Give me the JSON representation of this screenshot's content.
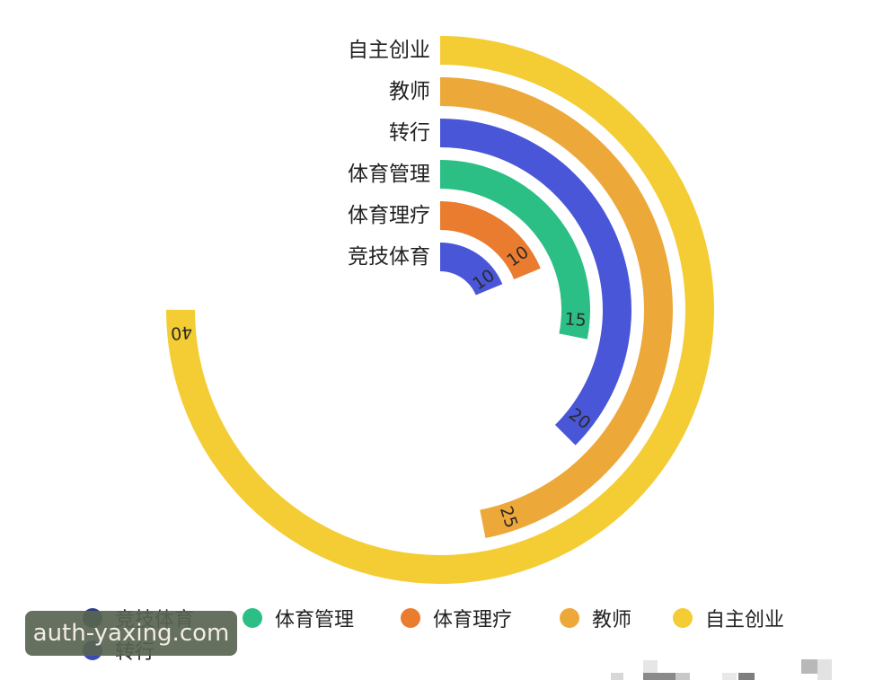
{
  "chart_data": {
    "type": "radial-bar",
    "title": "",
    "categories": [
      "竞技体育",
      "体育理疗",
      "体育管理",
      "转行",
      "教师",
      "自主创业"
    ],
    "values": [
      10,
      10,
      15,
      20,
      25,
      40
    ],
    "colors": [
      "#4a56d8",
      "#ea7c30",
      "#2bbf86",
      "#4a56d8",
      "#eda83a",
      "#f4cc33"
    ],
    "angle_max_value": 53.33,
    "start_angle": "top, clockwise",
    "legend_position": "bottom"
  },
  "labels": {
    "cat0": "竞技体育",
    "cat1": "体育理疗",
    "cat2": "体育管理",
    "cat3": "转行",
    "cat4": "教师",
    "cat5": "自主创业"
  },
  "legend": {
    "items": [
      {
        "label": "竞技体育",
        "color": "#2e3d8a"
      },
      {
        "label": "体育管理",
        "color": "#2bbf86"
      },
      {
        "label": "体育理疗",
        "color": "#ea7c30"
      },
      {
        "label": "教师",
        "color": "#eda83a"
      },
      {
        "label": "自主创业",
        "color": "#f4cc33"
      },
      {
        "label": "转行",
        "color": "#3d4bb8"
      }
    ]
  },
  "watermark": "auth-yaxing.com"
}
